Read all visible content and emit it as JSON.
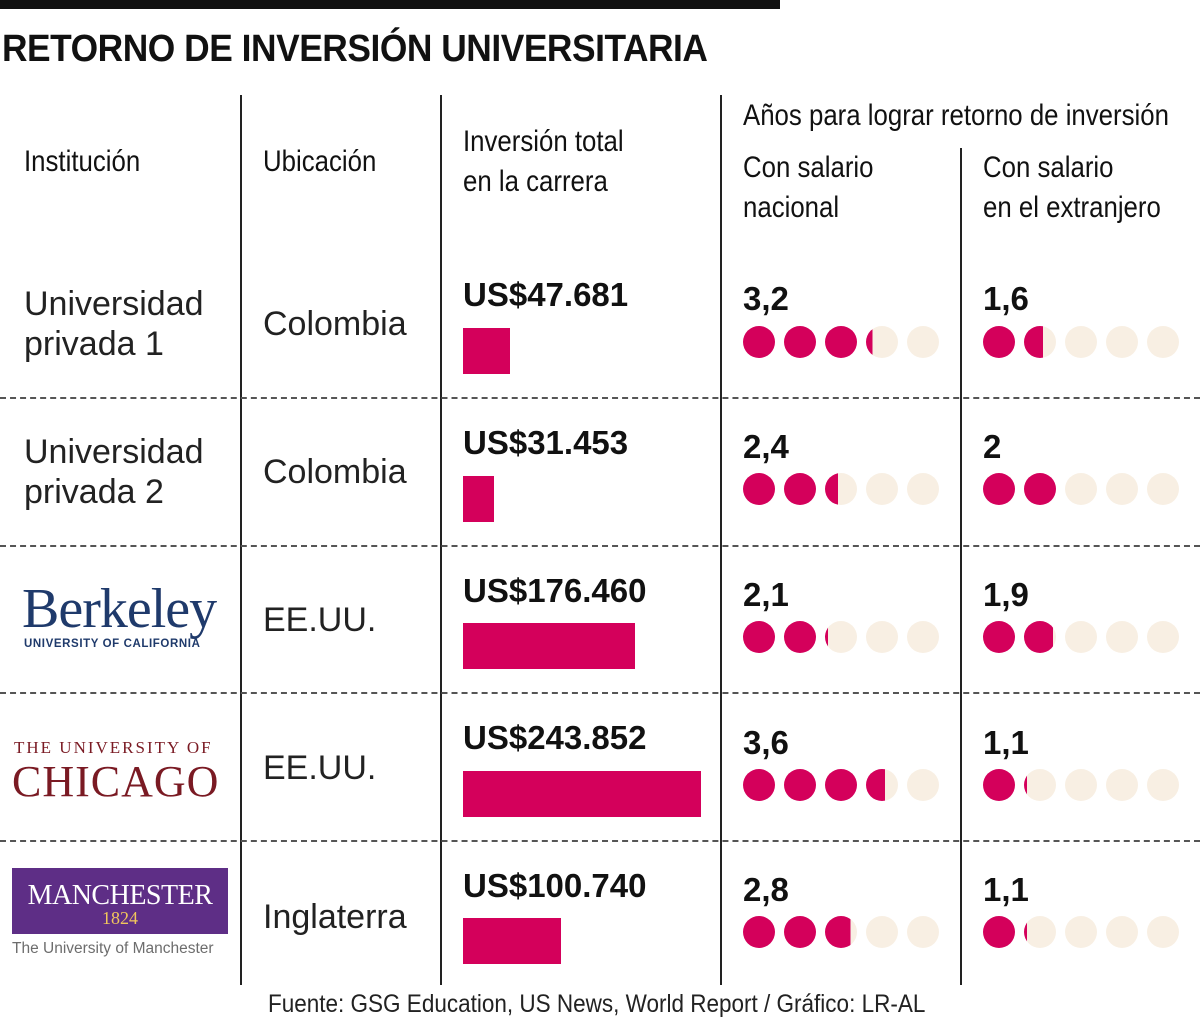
{
  "title": "RETORNO DE INVERSIÓN UNIVERSITARIA",
  "headers": {
    "institution": "Institución",
    "location": "Ubicación",
    "investment_line1": "Inversión total",
    "investment_line2": "en la carrera",
    "years_group": "Años para lograr retorno de inversión",
    "national_line1": "Con salario",
    "national_line2": "nacional",
    "foreign_line1": "Con salario",
    "foreign_line2": "en el extranjero"
  },
  "colors": {
    "accent": "#d4005b",
    "dot_empty": "#f8efe3"
  },
  "logos": {
    "berkeley": {
      "word": "Berkeley",
      "sub": "UNIVERSITY OF CALIFORNIA"
    },
    "chicago": {
      "top": "THE UNIVERSITY OF",
      "main": "CHICAGO"
    },
    "manchester": {
      "word": "MANCHESTER",
      "year": "1824",
      "sub": "The University of Manchester"
    }
  },
  "chart_data": {
    "type": "table",
    "title": "RETORNO DE INVERSIÓN UNIVERSITARIA",
    "dots_scale_max": 5,
    "investment_max": 243852,
    "rows": [
      {
        "institution_line1": "Universidad",
        "institution_line2": "privada 1",
        "location": "Colombia",
        "investment": 47681,
        "investment_label": "US$47.681",
        "years_national": 3.2,
        "years_national_label": "3,2",
        "years_foreign": 1.6,
        "years_foreign_label": "1,6"
      },
      {
        "institution_line1": "Universidad",
        "institution_line2": "privada 2",
        "location": "Colombia",
        "investment": 31453,
        "investment_label": "US$31.453",
        "years_national": 2.4,
        "years_national_label": "2,4",
        "years_foreign": 2,
        "years_foreign_label": "2"
      },
      {
        "institution_logo": "berkeley",
        "location": "EE.UU.",
        "investment": 176460,
        "investment_label": "US$176.460",
        "years_national": 2.1,
        "years_national_label": "2,1",
        "years_foreign": 1.9,
        "years_foreign_label": "1,9"
      },
      {
        "institution_logo": "chicago",
        "location": "EE.UU.",
        "investment": 243852,
        "investment_label": "US$243.852",
        "years_national": 3.6,
        "years_national_label": "3,6",
        "years_foreign": 1.1,
        "years_foreign_label": "1,1"
      },
      {
        "institution_logo": "manchester",
        "location": "Inglaterra",
        "investment": 100740,
        "investment_label": "US$100.740",
        "years_national": 2.8,
        "years_national_label": "2,8",
        "years_foreign": 1.1,
        "years_foreign_label": "1,1"
      }
    ]
  },
  "source": "Fuente: GSG Education, US News, World Report / Gráfico: LR-AL"
}
